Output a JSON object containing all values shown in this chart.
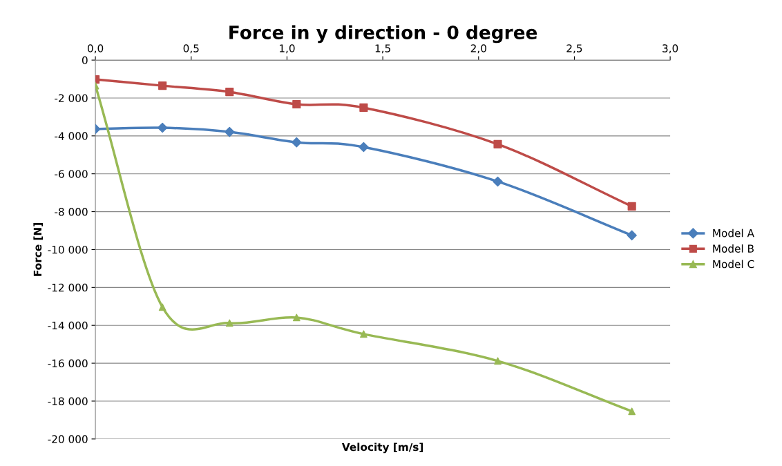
{
  "chart_data": {
    "type": "line",
    "title": "Force in y direction - 0 degree",
    "xlabel": "Velocity [m/s]",
    "ylabel": "Force [N]",
    "xlim": [
      0,
      3.0
    ],
    "xticks": [
      {
        "value": 0,
        "label": "0,0"
      },
      {
        "value": 0.5,
        "label": "0,5"
      },
      {
        "value": 1.0,
        "label": "1,0"
      },
      {
        "value": 1.5,
        "label": "1,5"
      },
      {
        "value": 2.0,
        "label": "2,0"
      },
      {
        "value": 2.5,
        "label": "2,5"
      },
      {
        "value": 3.0,
        "label": "3,0"
      }
    ],
    "ylim": [
      -20000,
      0
    ],
    "yticks": [
      {
        "value": 0,
        "label": "0"
      },
      {
        "value": -2000,
        "label": "-2 000"
      },
      {
        "value": -4000,
        "label": "-4 000"
      },
      {
        "value": -6000,
        "label": "-6 000"
      },
      {
        "value": -8000,
        "label": "-8 000"
      },
      {
        "value": -10000,
        "label": "-10 000"
      },
      {
        "value": -12000,
        "label": "-12 000"
      },
      {
        "value": -14000,
        "label": "-14 000"
      },
      {
        "value": -16000,
        "label": "-16 000"
      },
      {
        "value": -18000,
        "label": "-18 000"
      },
      {
        "value": -20000,
        "label": "-20 000"
      }
    ],
    "x": [
      0,
      0.35,
      0.7,
      1.05,
      1.4,
      2.1,
      2.8
    ],
    "grid": "y",
    "legend": "right",
    "series": [
      {
        "name": "Model A",
        "color": "#4a7ebb",
        "marker": "diamond",
        "values": [
          -3640,
          -3570,
          -3790,
          -4340,
          -4590,
          -6410,
          -9250
        ]
      },
      {
        "name": "Model B",
        "color": "#be4b48",
        "marker": "square",
        "values": [
          -1020,
          -1350,
          -1680,
          -2330,
          -2510,
          -4440,
          -7720
        ]
      },
      {
        "name": "Model C",
        "color": "#98b954",
        "marker": "triangle",
        "values": [
          -1350,
          -13040,
          -13880,
          -13590,
          -14460,
          -15880,
          -18540
        ]
      }
    ]
  }
}
